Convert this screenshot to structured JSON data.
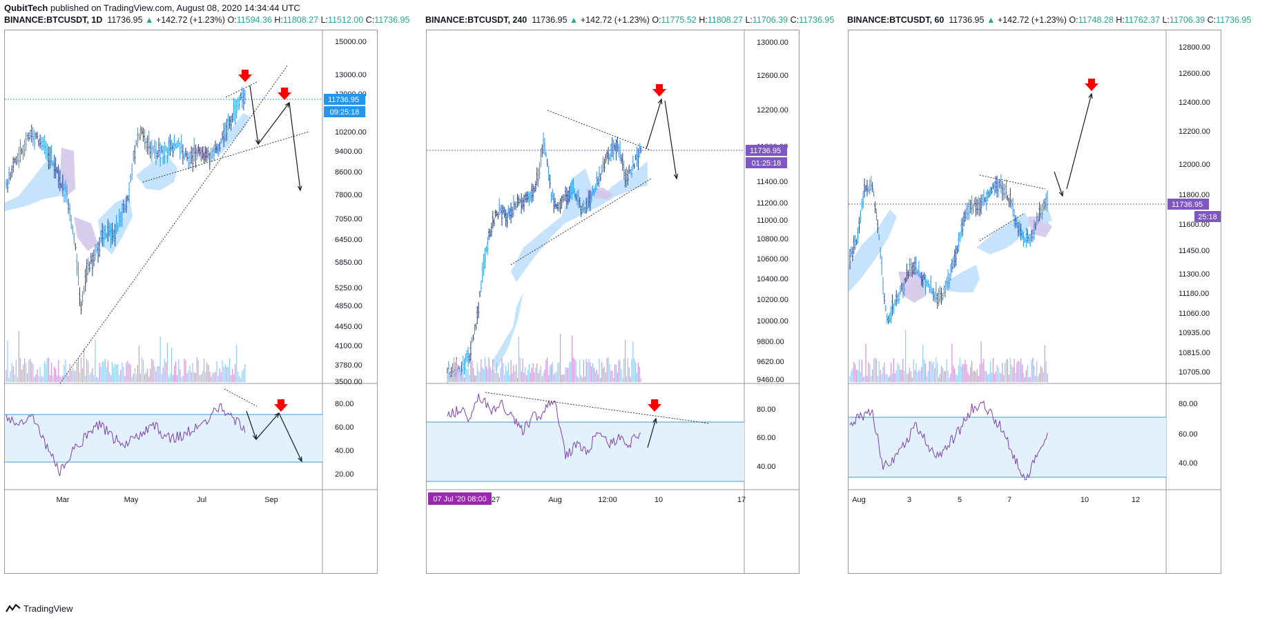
{
  "header": {
    "author": "QubitTech",
    "text": "published on TradingView.com, August 08, 2020 14:34:44 UTC"
  },
  "footer": {
    "brand": "TradingView"
  },
  "colors": {
    "rsi": "#7b3fb0",
    "band": "#e3f1fd",
    "band_line": "#3d9ad6",
    "arrow": "#ff0000",
    "price_line_blue": "#2196f3",
    "price_line_purple": "#7e57c2",
    "cloud_blue": "#bbdefb",
    "cloud_purple": "#d1c4e9"
  },
  "panels": [
    {
      "title": {
        "symbol": "BINANCE:BTCUSDT, 1D",
        "last": "11736.95",
        "change": "+142.72 (+1.23%)",
        "o": "11594.36",
        "h": "11808.27",
        "l": "11512.00",
        "c": "11736.95"
      },
      "labels": {
        "o": "O:",
        "h": "H:",
        "l": "L:",
        "c": "C:"
      },
      "price_axis": [
        "15000.00",
        "13000.00",
        "12000.00",
        "10200.00",
        "9400.00",
        "8600.00",
        "7800.00",
        "7050.00",
        "6450.00",
        "5850.00",
        "5250.00",
        "4850.00",
        "4450.00",
        "4100.00",
        "3780.00",
        "3500.00"
      ],
      "price_label": "11736.95",
      "countdown": "09:25:18",
      "rsi_axis": [
        "80.00",
        "60.00",
        "40.00",
        "20.00"
      ],
      "time_axis": [
        "Mar",
        "May",
        "Jul",
        "Sep"
      ],
      "accent": "#2196f3"
    },
    {
      "title": {
        "symbol": "BINANCE:BTCUSDT, 240",
        "last": "11736.95",
        "change": "+142.72 (+1.23%)",
        "o": "11775.52",
        "h": "11808.27",
        "l": "11706.39",
        "c": "11736.95"
      },
      "labels": {
        "o": "O:",
        "h": "H:",
        "l": "L:",
        "c": "C:"
      },
      "price_axis": [
        "13000.00",
        "12600.00",
        "12200.00",
        "11800.00",
        "11400.00",
        "11200.00",
        "11000.00",
        "10800.00",
        "10600.00",
        "10400.00",
        "10200.00",
        "10000.00",
        "9800.00",
        "9620.00",
        "9460.00"
      ],
      "price_label": "11736.95",
      "countdown": "01:25:18",
      "rsi_axis": [
        "80.00",
        "60.00",
        "40.00"
      ],
      "time_axis": [
        "27",
        "Aug",
        "12:00",
        "10",
        "17"
      ],
      "date_badge": "07 Jul '20   08:00",
      "accent": "#7e57c2"
    },
    {
      "title": {
        "symbol": "BINANCE:BTCUSDT, 60",
        "last": "11736.95",
        "change": "+142.72 (+1.23%)",
        "o": "11748.28",
        "h": "11762.37",
        "l": "11706.39",
        "c": "11736.95"
      },
      "labels": {
        "o": "O:",
        "h": "H:",
        "l": "L:",
        "c": "C:"
      },
      "price_axis": [
        "12800.00",
        "12600.00",
        "12400.00",
        "12200.00",
        "12000.00",
        "11800.00",
        "11600.00",
        "11450.00",
        "11300.00",
        "11180.00",
        "11060.00",
        "10935.00",
        "10815.00",
        "10705.00"
      ],
      "price_label": "11736.95",
      "countdown": "25:18",
      "rsi_axis": [
        "80.00",
        "60.00",
        "40.00"
      ],
      "time_axis": [
        "Aug",
        "3",
        "5",
        "7",
        "10",
        "12"
      ],
      "accent": "#7e57c2"
    }
  ],
  "chart_data": [
    {
      "type": "line",
      "title": "BINANCE:BTCUSDT, 1D",
      "last": 11736.95,
      "y_ticks": [
        15000,
        13000,
        12000,
        10200,
        9400,
        8600,
        7800,
        7050,
        6450,
        5850,
        5250,
        4850,
        4450,
        4100,
        3780,
        3500
      ],
      "rsi_band": [
        30,
        70
      ],
      "rsi_ticks": [
        80,
        60,
        40,
        20
      ],
      "x_ticks": [
        "Mar",
        "May",
        "Jul",
        "Sep"
      ]
    },
    {
      "type": "line",
      "title": "BINANCE:BTCUSDT, 240",
      "last": 11736.95,
      "y_ticks": [
        13000,
        12600,
        12200,
        11800,
        11400,
        11200,
        11000,
        10800,
        10600,
        10400,
        10200,
        10000,
        9800,
        9620,
        9460
      ],
      "rsi_band": [
        30,
        70
      ],
      "rsi_ticks": [
        80,
        60,
        40
      ],
      "x_ticks": [
        "27",
        "Aug",
        "12:00",
        "10",
        "17"
      ]
    },
    {
      "type": "line",
      "title": "BINANCE:BTCUSDT, 60",
      "last": 11736.95,
      "y_ticks": [
        12800,
        12600,
        12400,
        12200,
        12000,
        11800,
        11600,
        11450,
        11300,
        11180,
        11060,
        10935,
        10815,
        10705
      ],
      "rsi_band": [
        30,
        70
      ],
      "rsi_ticks": [
        80,
        60,
        40
      ],
      "x_ticks": [
        "Aug",
        "3",
        "5",
        "7",
        "10",
        "12"
      ]
    }
  ]
}
